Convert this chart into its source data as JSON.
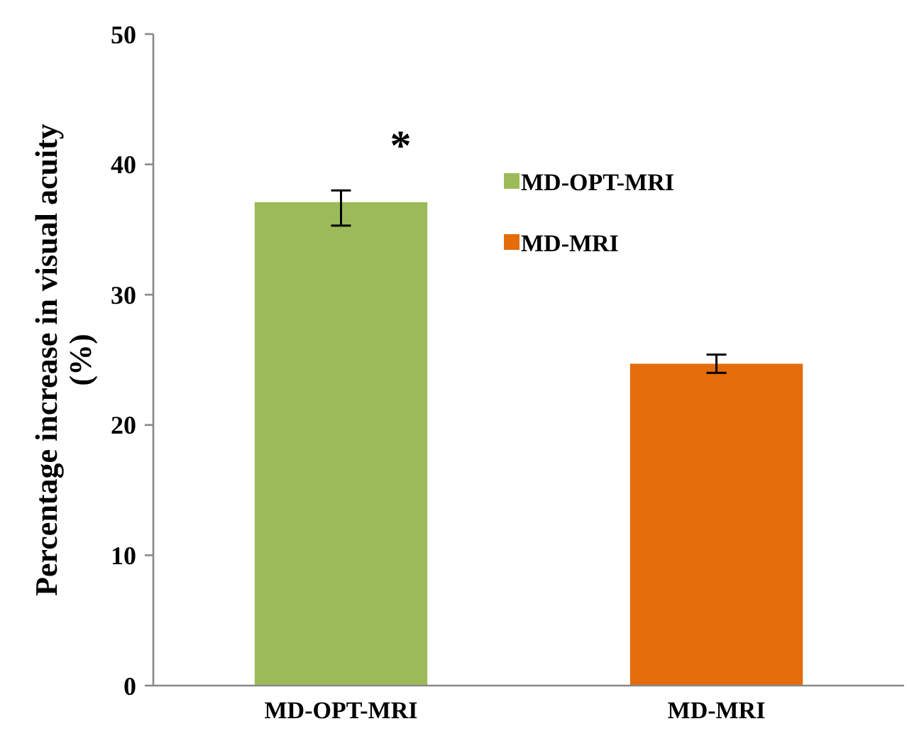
{
  "chart_data": {
    "type": "bar",
    "ylabel": "Percentage increase in visual acuity (%)",
    "categories": [
      "MD-OPT-MRI",
      "MD-MRI"
    ],
    "stacked": true,
    "series": [
      {
        "name": "MD-OPT-MRI",
        "color": "#9bbb59",
        "values": [
          37.1,
          null
        ],
        "errors": [
          [
            35.3,
            38.0
          ],
          null
        ]
      },
      {
        "name": "MD-MRI",
        "color": "#e46c0a",
        "values": [
          null,
          24.7
        ],
        "errors": [
          null,
          0.7
        ]
      }
    ],
    "ylim": [
      0,
      50
    ],
    "yticks": [
      0,
      10,
      20,
      30,
      40,
      50
    ],
    "grid": false,
    "legend": "top right",
    "annotations": [
      "*"
    ]
  }
}
